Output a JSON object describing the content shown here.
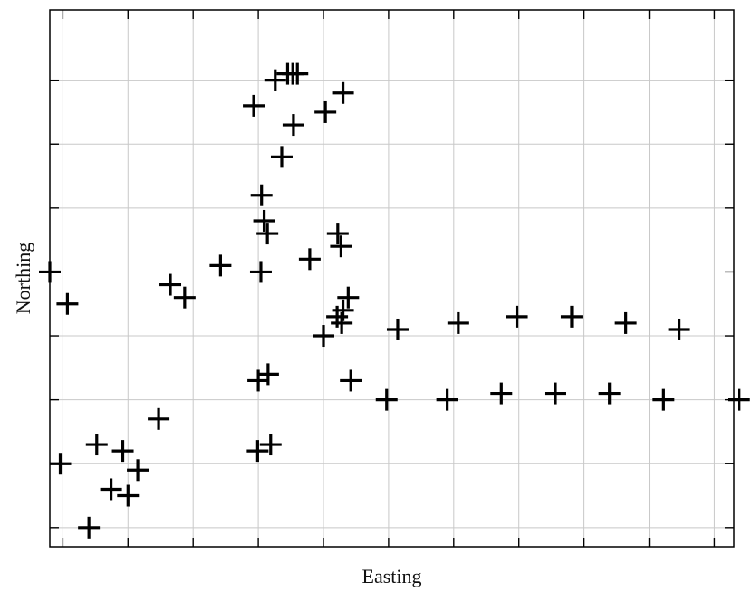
{
  "chart_data": {
    "type": "scatter",
    "title": "",
    "xlabel": "Easting",
    "ylabel": "Northing",
    "xlim": [
      -0.2,
      10.3
    ],
    "ylim": [
      -0.3,
      8.1
    ],
    "grid": true,
    "tick_labels_visible": false,
    "marker": "plus",
    "colors": {
      "marker": "#000000",
      "grid": "#c8c8c8",
      "axis": "#000000"
    },
    "series": [
      {
        "x": [
          -0.2,
          0.07,
          0.4,
          0.74,
          0.92,
          1.15,
          1.65,
          1.87,
          2.42,
          3.05,
          -0.04,
          0.52,
          1.0,
          1.47,
          2.93,
          3.26,
          3.45,
          3.53,
          3.6,
          4.03,
          4.3,
          3.04,
          3.14,
          4.27,
          3.09,
          3.36,
          3.54,
          4.22,
          3.79,
          4.42,
          3.0,
          3.15,
          2.99,
          3.19,
          4.0,
          5.14,
          6.07,
          6.97,
          7.81,
          8.64,
          9.46,
          10.38,
          4.97,
          5.9,
          6.73,
          7.56,
          8.39,
          9.22,
          4.38,
          4.3,
          4.28,
          4.21
        ],
        "y": [
          4.0,
          3.5,
          0.0,
          0.6,
          1.2,
          0.9,
          3.8,
          3.6,
          4.1,
          5.2,
          1.0,
          1.3,
          0.5,
          1.7,
          6.6,
          7.0,
          7.1,
          7.1,
          7.1,
          6.5,
          6.8,
          4.0,
          4.6,
          4.4,
          4.8,
          5.8,
          6.3,
          4.6,
          4.2,
          2.3,
          2.3,
          2.4,
          1.2,
          1.3,
          3.0,
          3.1,
          3.2,
          3.3,
          3.3,
          3.2,
          3.1,
          2.0,
          2.0,
          2.0,
          2.1,
          2.1,
          2.1,
          2.0,
          3.6,
          3.4,
          3.2,
          3.3
        ]
      }
    ]
  }
}
